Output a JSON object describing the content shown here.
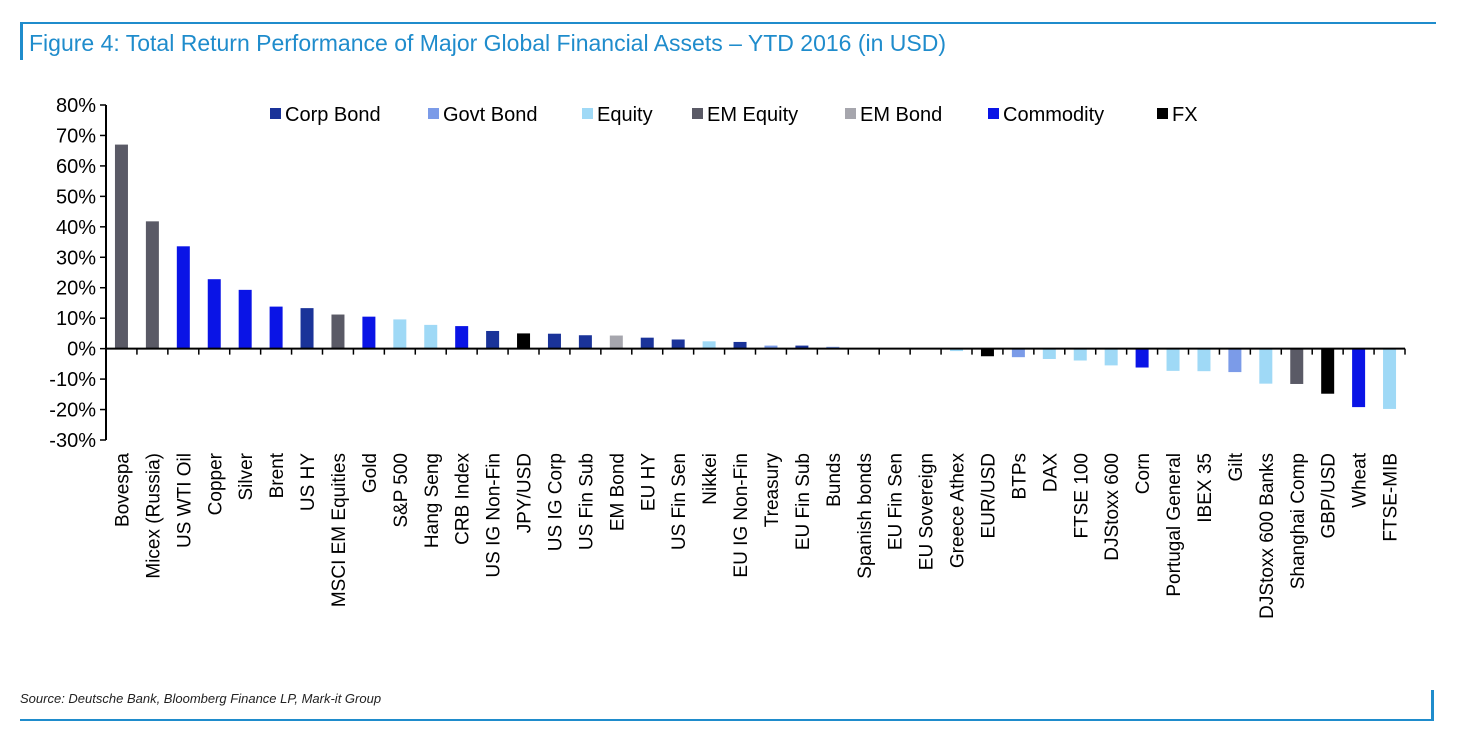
{
  "title": "Figure 4: Total Return Performance of Major Global Financial Assets – YTD 2016 (in USD)",
  "source": "Source: Deutsche Bank, Bloomberg Finance LP, Mark-it Group",
  "colors": {
    "accent": "#1f8ccc",
    "Corp Bond": "#1a3399",
    "Govt Bond": "#7b9be8",
    "Equity": "#9fd9f6",
    "EM Equity": "#5a5a66",
    "EM Bond": "#a6a6ad",
    "Commodity": "#0a14e6",
    "FX": "#000000"
  },
  "chart_data": {
    "type": "bar",
    "ylim": [
      -30,
      80
    ],
    "yticks": [
      "80%",
      "70%",
      "60%",
      "50%",
      "40%",
      "30%",
      "20%",
      "10%",
      "0%",
      "-10%",
      "-20%",
      "-30%"
    ],
    "ytick_values": [
      80,
      70,
      60,
      50,
      40,
      30,
      20,
      10,
      0,
      -10,
      -20,
      -30
    ],
    "legend": [
      "Corp Bond",
      "Govt Bond",
      "Equity",
      "EM Equity",
      "EM Bond",
      "Commodity",
      "FX"
    ],
    "legend_position": "top",
    "categories": [
      "Bovespa",
      "Micex (Russia)",
      "US WTI Oil",
      "Copper",
      "Silver",
      "Brent",
      "US HY",
      "MSCI EM Equities",
      "Gold",
      "S&P 500",
      "Hang Seng",
      "CRB Index",
      "US IG Non-Fin",
      "JPY/USD",
      "US IG Corp",
      "US Fin Sub",
      "EM Bond",
      "EU HY",
      "US Fin Sen",
      "Nikkei",
      "EU IG Non-Fin",
      "Treasury",
      "EU Fin Sub",
      "Bunds",
      "Spanish bonds",
      "EU Fin Sen",
      "EU Sovereign",
      "Greece Athex",
      "EUR/USD",
      "BTPs",
      "DAX",
      "FTSE 100",
      "DJStoxx 600",
      "Corn",
      "Portugal General",
      "IBEX 35",
      "Gilt",
      "DJStoxx 600 Banks",
      "Shanghai Comp",
      "GBP/USD",
      "Wheat",
      "FTSE-MIB"
    ],
    "values": [
      67,
      41.8,
      33.6,
      22.8,
      19.3,
      13.8,
      13.3,
      11.2,
      10.5,
      9.6,
      7.8,
      7.4,
      5.8,
      5.0,
      4.9,
      4.4,
      4.3,
      3.6,
      3.0,
      2.4,
      2.2,
      1.0,
      1.0,
      0.6,
      0.1,
      0.1,
      -0.1,
      -0.8,
      -2.5,
      -2.8,
      -3.4,
      -3.9,
      -5.5,
      -6.2,
      -7.3,
      -7.4,
      -7.7,
      -11.5,
      -11.6,
      -14.8,
      -19.2,
      -19.8
    ],
    "groups": [
      "EM Equity",
      "EM Equity",
      "Commodity",
      "Commodity",
      "Commodity",
      "Commodity",
      "Corp Bond",
      "EM Equity",
      "Commodity",
      "Equity",
      "Equity",
      "Commodity",
      "Corp Bond",
      "FX",
      "Corp Bond",
      "Corp Bond",
      "EM Bond",
      "Corp Bond",
      "Corp Bond",
      "Equity",
      "Corp Bond",
      "Govt Bond",
      "Corp Bond",
      "Govt Bond",
      "Govt Bond",
      "Corp Bond",
      "Govt Bond",
      "Equity",
      "FX",
      "Govt Bond",
      "Equity",
      "Equity",
      "Equity",
      "Commodity",
      "Equity",
      "Equity",
      "Govt Bond",
      "Equity",
      "EM Equity",
      "FX",
      "Commodity",
      "Equity"
    ]
  }
}
